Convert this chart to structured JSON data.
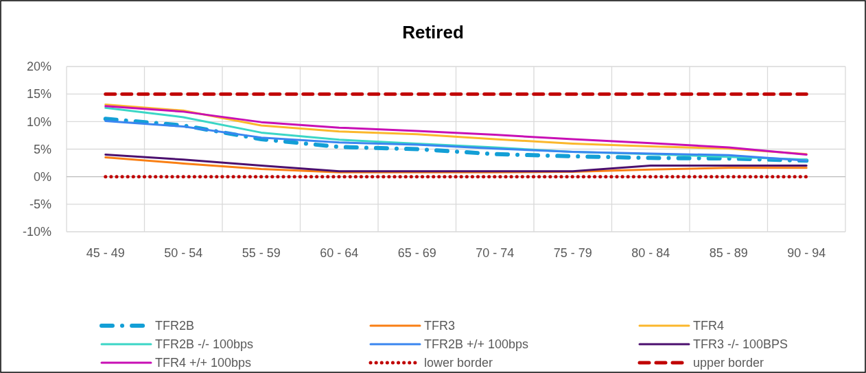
{
  "chart_data": {
    "type": "line",
    "title": "Retired",
    "categories": [
      "45 - 49",
      "50 - 54",
      "55 - 59",
      "60 - 64",
      "65 - 69",
      "70 - 74",
      "75 - 79",
      "80 - 84",
      "85 - 89",
      "90 - 94"
    ],
    "ylim": [
      -10,
      20
    ],
    "yticks": [
      {
        "value": -10,
        "label": "-10%"
      },
      {
        "value": -5,
        "label": "-5%"
      },
      {
        "value": 0,
        "label": "0%"
      },
      {
        "value": 5,
        "label": "5%"
      },
      {
        "value": 10,
        "label": "10%"
      },
      {
        "value": 15,
        "label": "15%"
      },
      {
        "value": 20,
        "label": "20%"
      }
    ],
    "grid": true,
    "legend": "bottom",
    "marker": "none",
    "series": [
      {
        "name": "TFR2B",
        "color": "#139fd6",
        "line_style": "dashed",
        "values": [
          10.5,
          9.3,
          6.8,
          5.4,
          5.0,
          4.1,
          3.7,
          3.4,
          3.3,
          2.9
        ]
      },
      {
        "name": "TFR3",
        "color": "#f97f14",
        "line_style": "solid",
        "values": [
          3.5,
          2.4,
          1.4,
          0.8,
          0.8,
          0.8,
          0.9,
          1.3,
          1.6,
          1.6
        ]
      },
      {
        "name": "TFR4",
        "color": "#fbb72c",
        "line_style": "solid",
        "values": [
          13.1,
          12.0,
          9.3,
          8.2,
          7.7,
          6.8,
          6.0,
          5.5,
          5.1,
          4.1
        ]
      },
      {
        "name": "TFR2B -/- 100bps",
        "color": "#3bd6c6",
        "line_style": "solid",
        "values": [
          12.5,
          10.8,
          8.0,
          6.7,
          6.0,
          5.3,
          4.5,
          4.1,
          3.6,
          3.1
        ]
      },
      {
        "name": "TFR2B +/+ 100bps",
        "color": "#3a86f0",
        "line_style": "solid",
        "values": [
          10.1,
          9.1,
          7.1,
          6.2,
          5.8,
          5.1,
          4.5,
          4.2,
          3.9,
          2.9
        ]
      },
      {
        "name": "TFR3 -/- 100BPS",
        "color": "#4b0f6e",
        "line_style": "solid",
        "values": [
          4.0,
          3.1,
          2.0,
          1.0,
          1.0,
          1.0,
          1.0,
          2.0,
          2.0,
          2.0
        ]
      },
      {
        "name": "TFR4 +/+ 100bps",
        "color": "#c80fb4",
        "line_style": "solid",
        "values": [
          12.8,
          11.8,
          9.9,
          8.9,
          8.3,
          7.6,
          6.8,
          6.1,
          5.3,
          4.0
        ]
      },
      {
        "name": "lower border",
        "color": "#c00000",
        "line_style": "dotted",
        "values": [
          0,
          0,
          0,
          0,
          0,
          0,
          0,
          0,
          0,
          0
        ]
      },
      {
        "name": "upper border",
        "color": "#c00000",
        "line_style": "dashed",
        "values": [
          15,
          15,
          15,
          15,
          15,
          15,
          15,
          15,
          15,
          15
        ]
      }
    ]
  }
}
